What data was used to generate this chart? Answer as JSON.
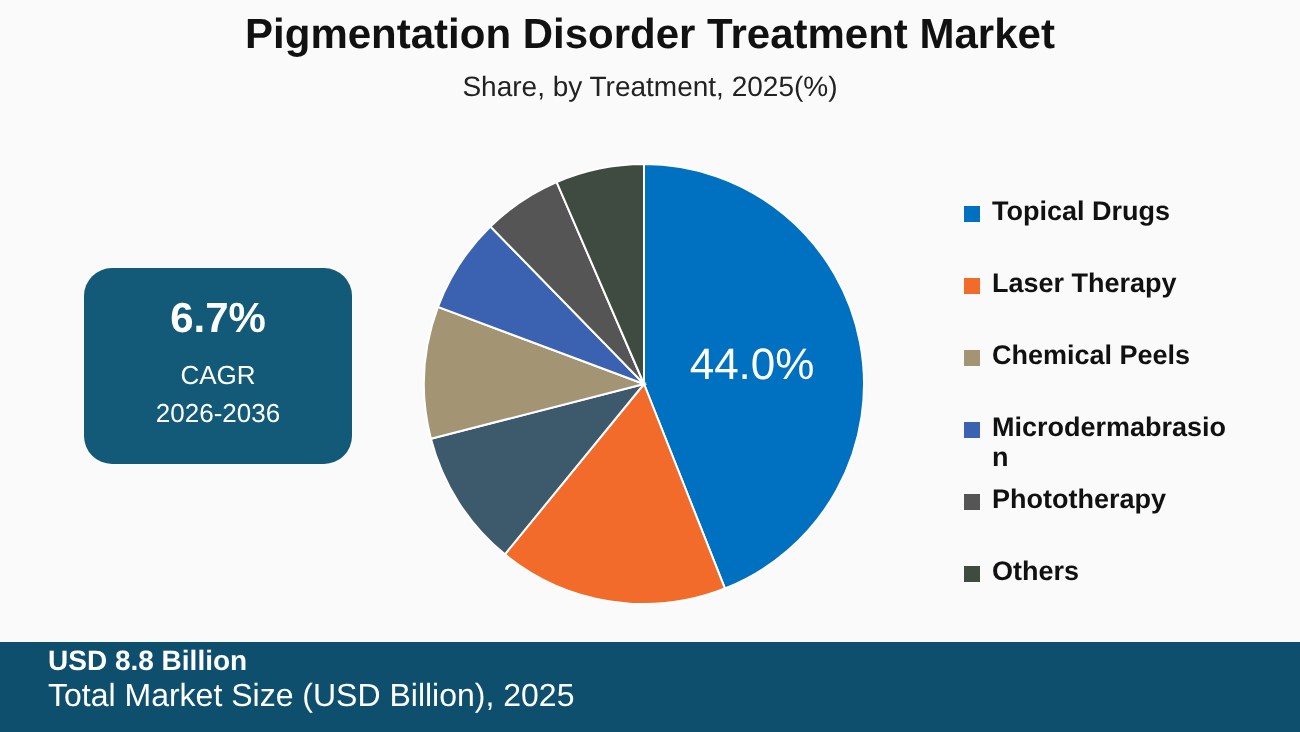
{
  "chart_data": {
    "type": "pie",
    "title": "Pigmentation Disorder Treatment Market",
    "subtitle": "Share, by Treatment, 2025(%)",
    "categories": [
      "Topical Drugs",
      "Laser Therapy",
      null,
      "Chemical Peels",
      "Microdermabrasion",
      "Phototherapy",
      "Others"
    ],
    "values": [
      44.0,
      16.9,
      10.1,
      9.7,
      7.0,
      5.8,
      6.5
    ],
    "colors": [
      "#0070c0",
      "#f26b2a",
      "#3d5a6c",
      "#a39474",
      "#3a62b0",
      "#555555",
      "#3f4a40"
    ],
    "value_labels": [
      "44.0%",
      null,
      null,
      null,
      null,
      null,
      null
    ],
    "legend": "right",
    "annotations": [
      "6.7%",
      "CAGR",
      "2026-2036",
      "USD 8.8 Billion",
      "Total Market Size (USD Billion), 2025"
    ]
  }
}
